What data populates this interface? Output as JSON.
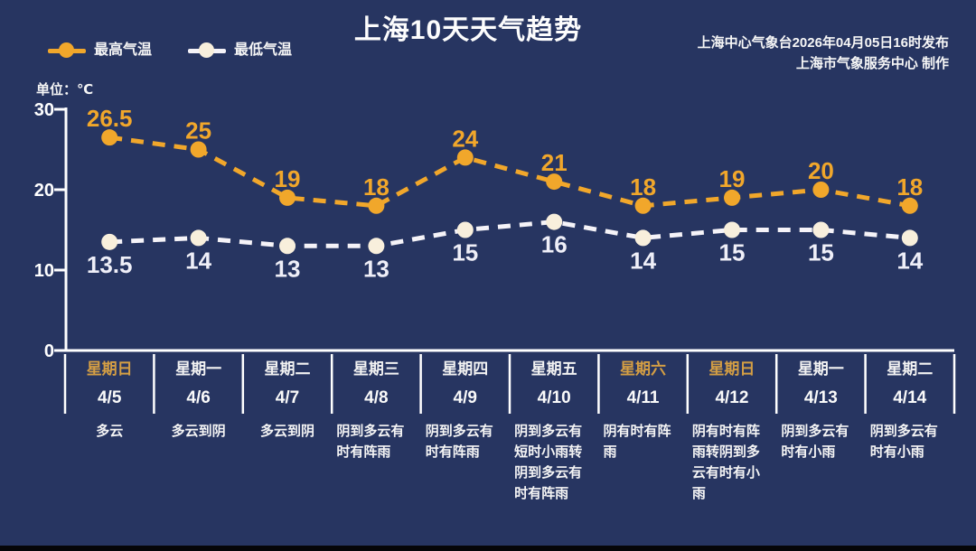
{
  "page": {
    "title": "上海10天天气趋势",
    "publisher_line1": "上海中心气象台2026年04月05日16时发布",
    "publisher_line2": "上海市气象服务中心 制作",
    "unit_label": "单位：℃"
  },
  "colors": {
    "background": "#273561",
    "high_temp": "#F1A72B",
    "low_temp_line": "#F5F3F8",
    "low_temp_marker": "#F8EFDC",
    "low_temp_label": "#EFEFF8",
    "axis": "#FFFFFF",
    "weekend_day": "#D49E44",
    "text": "#F5F5F5"
  },
  "chart_data": {
    "type": "line",
    "title": "上海10天天气趋势",
    "categories": [
      "4/5",
      "4/6",
      "4/7",
      "4/8",
      "4/9",
      "4/10",
      "4/11",
      "4/12",
      "4/13",
      "4/14"
    ],
    "series": [
      {
        "name": "最高气温",
        "values": [
          26.5,
          25,
          19,
          18,
          24,
          21,
          18,
          19,
          20,
          18
        ],
        "line_color": "#F1A72B",
        "marker_color": "#F1A72B",
        "label_color": "#F1A72B",
        "label_position": "above"
      },
      {
        "name": "最低气温",
        "values": [
          13.5,
          14,
          13,
          13,
          15,
          16,
          14,
          15,
          15,
          14
        ],
        "line_color": "#F5F3F8",
        "marker_color": "#F8EFDC",
        "label_color": "#EFEFF8",
        "label_position": "below"
      }
    ],
    "ylabel": "单位：℃",
    "ylim": [
      0,
      30
    ],
    "yticks": [
      0,
      10,
      20,
      30
    ],
    "line_style": "dashed",
    "grid": false,
    "legend_position": "top-left"
  },
  "table": {
    "columns": [
      {
        "day": "星期日",
        "date": "4/5",
        "weather": "多云",
        "weekend": true
      },
      {
        "day": "星期一",
        "date": "4/6",
        "weather": "多云到阴",
        "weekend": false
      },
      {
        "day": "星期二",
        "date": "4/7",
        "weather": "多云到阴",
        "weekend": false
      },
      {
        "day": "星期三",
        "date": "4/8",
        "weather": "阴到多云有时有阵雨",
        "weekend": false
      },
      {
        "day": "星期四",
        "date": "4/9",
        "weather": "阴到多云有时有阵雨",
        "weekend": false
      },
      {
        "day": "星期五",
        "date": "4/10",
        "weather": "阴到多云有短时小雨转阴到多云有时有阵雨",
        "weekend": false
      },
      {
        "day": "星期六",
        "date": "4/11",
        "weather": "阴有时有阵雨",
        "weekend": true
      },
      {
        "day": "星期日",
        "date": "4/12",
        "weather": "阴有时有阵雨转阴到多云有时有小雨",
        "weekend": true
      },
      {
        "day": "星期一",
        "date": "4/13",
        "weather": "阴到多云有时有小雨",
        "weekend": false
      },
      {
        "day": "星期二",
        "date": "4/14",
        "weather": "阴到多云有时有小雨",
        "weekend": false
      }
    ]
  }
}
